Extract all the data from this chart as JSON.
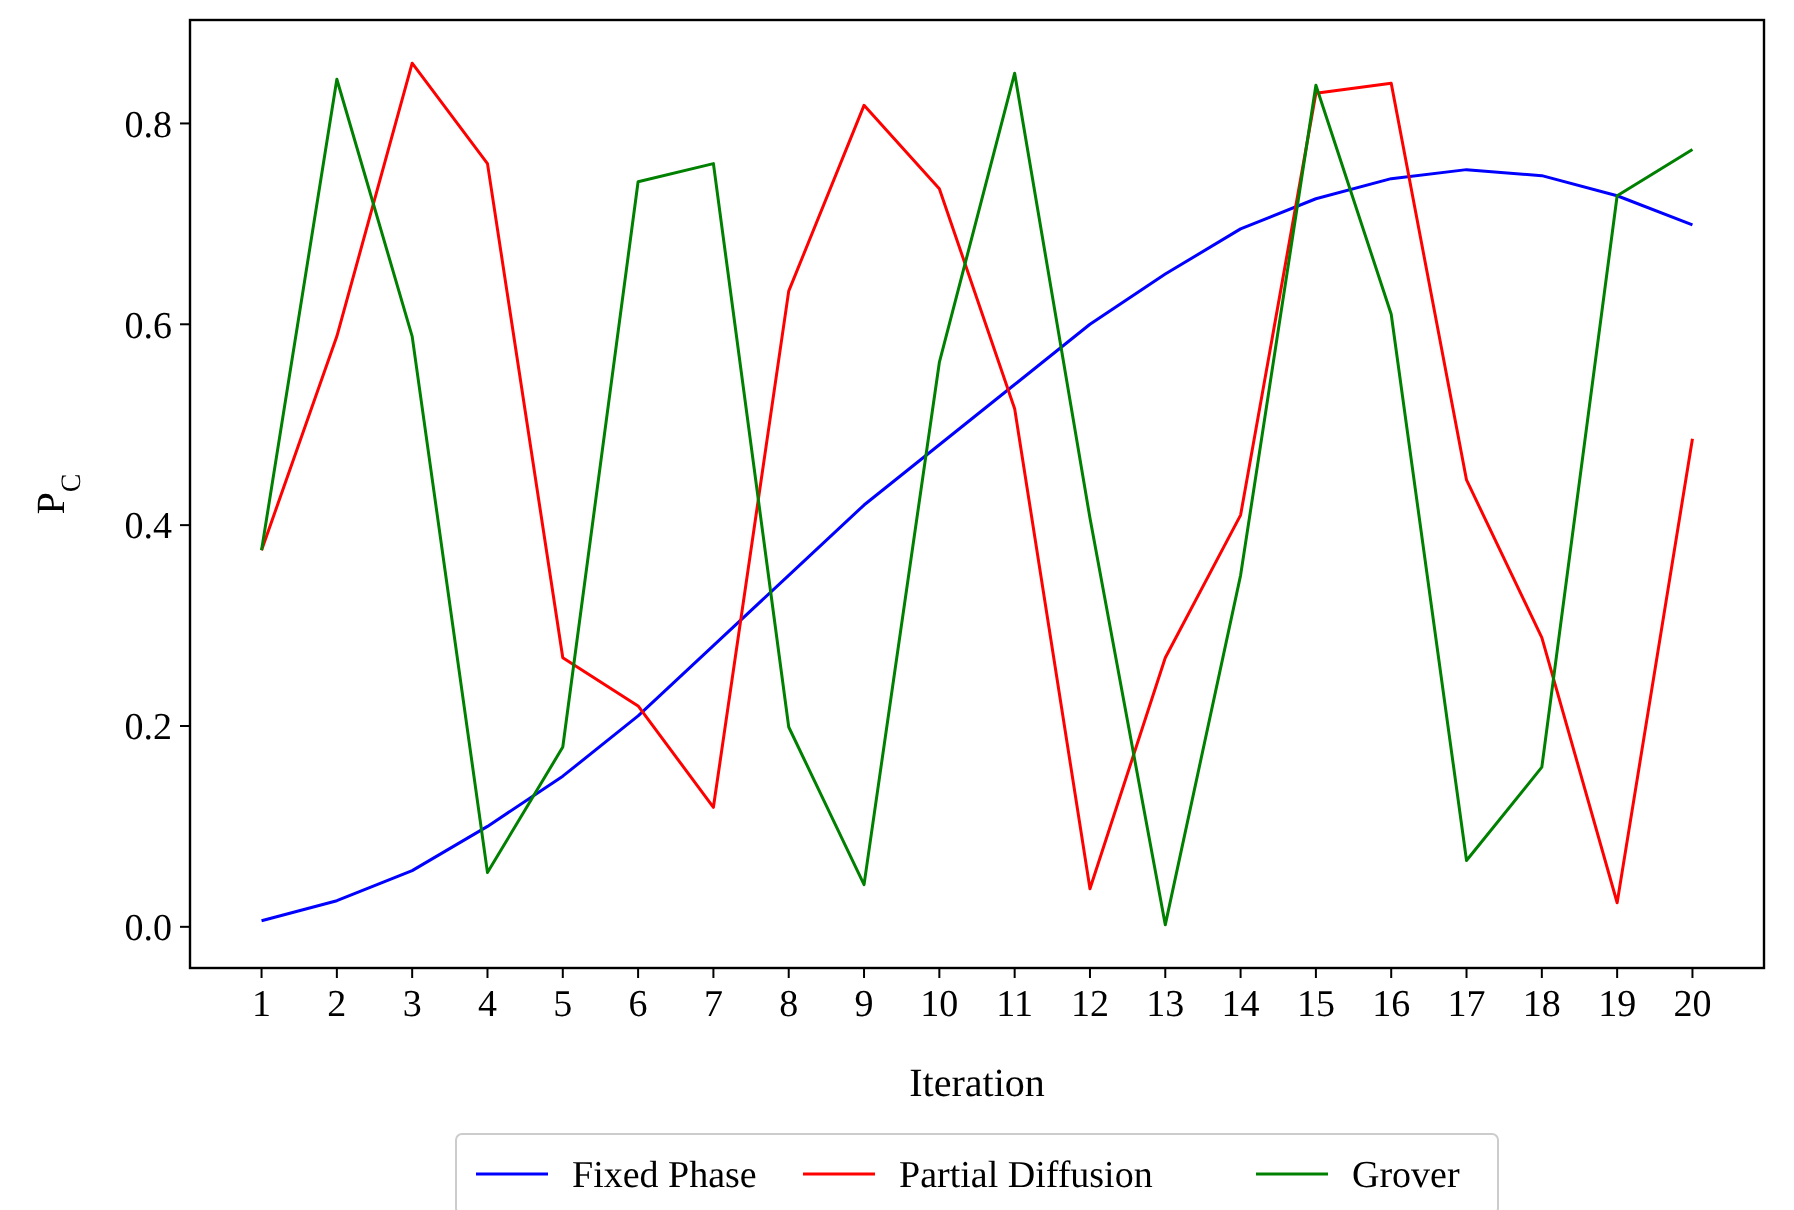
{
  "chart_data": {
    "type": "line",
    "xlabel": "Iteration",
    "ylabel": "P$_{C}$",
    "x": [
      1,
      2,
      3,
      4,
      5,
      6,
      7,
      8,
      9,
      10,
      11,
      12,
      13,
      14,
      15,
      16,
      17,
      18,
      19,
      20
    ],
    "series": [
      {
        "name": "Fixed Phase",
        "color": "#0000ff",
        "values": [
          0.006,
          0.026,
          0.056,
          0.1,
          0.15,
          0.21,
          0.28,
          0.35,
          0.42,
          0.48,
          0.54,
          0.6,
          0.65,
          0.695,
          0.725,
          0.745,
          0.754,
          0.748,
          0.728,
          0.699
        ]
      },
      {
        "name": "Partial Diffusion",
        "color": "#ff0000",
        "values": [
          0.375,
          0.588,
          0.86,
          0.76,
          0.268,
          0.22,
          0.119,
          0.633,
          0.818,
          0.735,
          0.516,
          0.038,
          0.268,
          0.41,
          0.83,
          0.84,
          0.445,
          0.288,
          0.024,
          0.486
        ]
      },
      {
        "name": "Grover",
        "color": "#008000",
        "values": [
          0.375,
          0.844,
          0.588,
          0.054,
          0.179,
          0.742,
          0.76,
          0.199,
          0.042,
          0.562,
          0.85,
          0.407,
          0.002,
          0.35,
          0.838,
          0.61,
          0.066,
          0.159,
          0.728,
          0.774
        ]
      }
    ],
    "xlim": [
      0.05,
      20.95
    ],
    "xticks": [
      1,
      2,
      3,
      4,
      5,
      6,
      7,
      8,
      9,
      10,
      11,
      12,
      13,
      14,
      15,
      16,
      17,
      18,
      19,
      20
    ],
    "ylim": [
      -0.041,
      0.903
    ],
    "yticks": [
      {
        "value": 0,
        "label": "0.0"
      },
      {
        "value": 0.2,
        "label": "0.2"
      },
      {
        "value": 0.4,
        "label": "0.4"
      },
      {
        "value": 0.6,
        "label": "0.6"
      },
      {
        "value": 0.8,
        "label": "0.8"
      }
    ],
    "legend": "bottom",
    "grid": false,
    "marker": "none",
    "line_style": "solid"
  }
}
